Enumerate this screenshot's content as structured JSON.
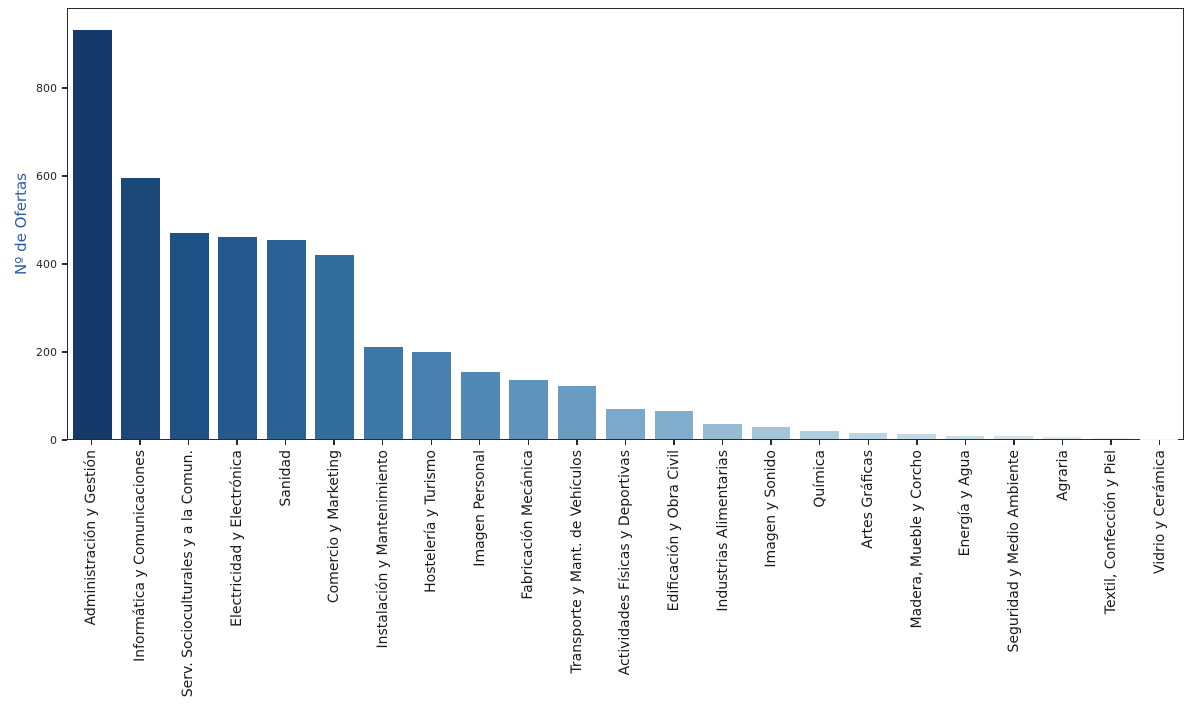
{
  "figure": {
    "background": "#ffffff",
    "spine_color": "#2b2b2b",
    "tick_label_color": "#262626",
    "ylabel_color": "#2a5caa"
  },
  "chart_data": {
    "type": "bar",
    "title": "",
    "xlabel": "",
    "ylabel": "Nº de Ofertas",
    "ylim": [
      0,
      982
    ],
    "yticks": [
      0,
      200,
      400,
      600,
      800
    ],
    "grid": false,
    "legend": false,
    "x_tick_rotation_deg": 90,
    "categories": [
      "Administración y Gestión",
      "Informática y Comunicaciones",
      "Serv. Socioculturales y a la Comun.",
      "Electricidad y Electrónica",
      "Sanidad",
      "Comercio y Marketing",
      "Instalación y Mantenimiento",
      "Hostelería y Turismo",
      "Imagen Personal",
      "Fabricación Mecánica",
      "Transporte y Mant. de Vehículos",
      "Actividades Físicas y Deportivas",
      "Edificación y Obra Civil",
      "Industrias Alimentarias",
      "Imagen y Sonido",
      "Química",
      "Artes Gráficas",
      "Madera, Mueble y Corcho",
      "Energía y Agua",
      "Seguridad y Medio Ambiente",
      "Agraria",
      "Textil, Confección y Piel",
      "Vidrio y Cerámica"
    ],
    "values": [
      935,
      597,
      471,
      462,
      455,
      420,
      209,
      198,
      154,
      134,
      121,
      69,
      65,
      35,
      27,
      19,
      13,
      12,
      8,
      7,
      5,
      2,
      1
    ],
    "bar_colors": [
      "#15396b",
      "#1b4779",
      "#1f5186",
      "#25598d",
      "#2b6295",
      "#336d9e",
      "#3d78a8",
      "#4780ae",
      "#5289b4",
      "#5e93bb",
      "#6a9cc2",
      "#7aa9cb",
      "#82aecd",
      "#96bcd4",
      "#a2c5da",
      "#aecddf",
      "#bad4e4",
      "#c2dae8",
      "#cadfeb",
      "#d2e3ee",
      "#dae9f2",
      "#e4eef6",
      "#eef5fa"
    ]
  }
}
